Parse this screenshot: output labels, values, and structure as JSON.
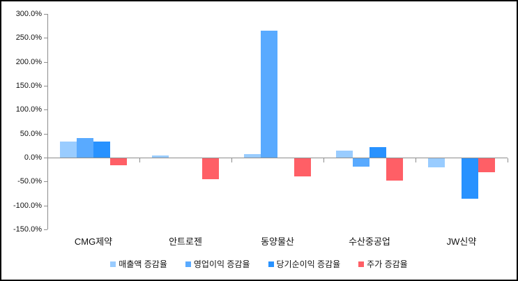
{
  "chart_data": {
    "type": "bar",
    "categories": [
      "CMG제약",
      "안트로젠",
      "동양물산",
      "수산중공업",
      "JW신약"
    ],
    "series": [
      {
        "name": "매출액 증감율",
        "color": "#99CCFF",
        "values": [
          34,
          5,
          8,
          14,
          -19
        ]
      },
      {
        "name": "영업이익 증감율",
        "color": "#59AAFF",
        "values": [
          41,
          0,
          265,
          -17,
          0
        ]
      },
      {
        "name": "당기순이익 증감율",
        "color": "#2892FF",
        "values": [
          33,
          0,
          0,
          22,
          -85
        ]
      },
      {
        "name": "주가 증감율",
        "color": "#FF5F66",
        "values": [
          -15,
          -43,
          -38,
          -46,
          -29
        ]
      }
    ],
    "ylim": [
      -150,
      300
    ],
    "ytick_step": 50,
    "ytick_labels": [
      "300.0%",
      "250.0%",
      "200.0%",
      "150.0%",
      "100.0%",
      "50.0%",
      "0.0%",
      "-50.0%",
      "-100.0%",
      "-150.0%"
    ],
    "grid": false,
    "legend_position": "bottom",
    "axis_color": "#8c8c8c",
    "text_color": "#111111"
  }
}
